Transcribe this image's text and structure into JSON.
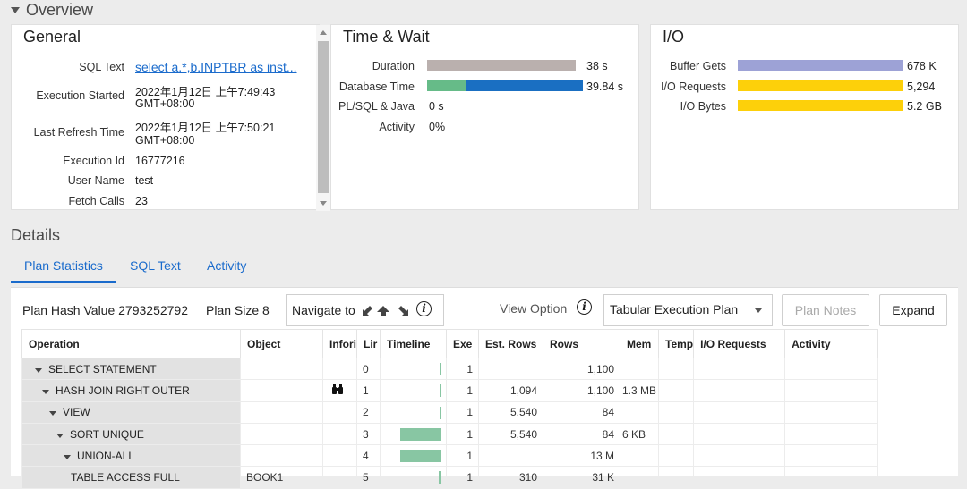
{
  "overview": {
    "title": "Overview"
  },
  "general": {
    "title": "General",
    "rows": [
      {
        "label": "SQL Text",
        "value": "select a.*,b.INPTBR as inst..."
      },
      {
        "label": "Execution Started",
        "value": "2022年1月12日 上午7:49:43",
        "value2": "GMT+08:00"
      },
      {
        "label": "Last Refresh Time",
        "value": "2022年1月12日 上午7:50:21",
        "value2": "GMT+08:00"
      },
      {
        "label": "Execution Id",
        "value": "16777216"
      },
      {
        "label": "User Name",
        "value": "test"
      },
      {
        "label": "Fetch Calls",
        "value": "23"
      }
    ]
  },
  "time_wait": {
    "title": "Time & Wait",
    "rows": [
      {
        "label": "Duration",
        "value": "38 s"
      },
      {
        "label": "Database Time",
        "value": "39.84 s"
      },
      {
        "label": "PL/SQL & Java",
        "value": "0 s"
      },
      {
        "label": "Activity",
        "value": "0%"
      }
    ],
    "colors": {
      "duration": "#bab0ae",
      "db_green": "#66bb88",
      "db_blue": "#1a6fc2"
    }
  },
  "io": {
    "title": "I/O",
    "rows": [
      {
        "label": "Buffer Gets",
        "value": "678 K"
      },
      {
        "label": "I/O Requests",
        "value": "5,294"
      },
      {
        "label": "I/O Bytes",
        "value": "5.2 GB"
      }
    ],
    "colors": {
      "buffer": "#9da2d6",
      "io": "#fdd00a"
    }
  },
  "details": {
    "title": "Details",
    "tabs": [
      "Plan Statistics",
      "SQL Text",
      "Activity"
    ],
    "active_tab": "Plan Statistics"
  },
  "toolbar": {
    "plan_hash": "Plan Hash Value 2793252792",
    "plan_size": "Plan Size 8",
    "navigate": "Navigate to",
    "view_option": "View Option",
    "view_select": "Tabular Execution Plan",
    "plan_notes": "Plan Notes",
    "expand": "Expand"
  },
  "plan_table": {
    "columns": [
      "Operation",
      "Object",
      "Infori",
      "Lir",
      "Timeline",
      "Exe",
      "Est. Rows",
      "Rows",
      "Mem",
      "Temp",
      "I/O Requests",
      "Activity"
    ],
    "rows": [
      {
        "op": "SELECT STATEMENT",
        "indent": 0,
        "object": "",
        "info": false,
        "line": "0",
        "tl_pct": 0,
        "exe": "1",
        "est": "",
        "rows": "1,100",
        "mem": ""
      },
      {
        "op": "HASH JOIN RIGHT OUTER",
        "indent": 1,
        "object": "",
        "info": true,
        "line": "1",
        "tl_pct": 0,
        "exe": "1",
        "est": "1,094",
        "rows": "1,100",
        "mem": "1.3 MB"
      },
      {
        "op": "VIEW",
        "indent": 2,
        "object": "",
        "info": false,
        "line": "2",
        "tl_pct": 0,
        "exe": "1",
        "est": "5,540",
        "rows": "84",
        "mem": ""
      },
      {
        "op": "SORT UNIQUE",
        "indent": 3,
        "object": "",
        "info": false,
        "line": "3",
        "tl_pct": 75,
        "exe": "1",
        "est": "5,540",
        "rows": "84",
        "mem": "6 KB"
      },
      {
        "op": "UNION-ALL",
        "indent": 4,
        "object": "",
        "info": false,
        "line": "4",
        "tl_pct": 75,
        "exe": "1",
        "est": "",
        "rows": "13 M",
        "mem": ""
      },
      {
        "op": "TABLE ACCESS FULL",
        "indent": 5,
        "object": "BOOK1",
        "info": false,
        "line": "5",
        "tl_pct": 5,
        "exe": "1",
        "est": "310",
        "rows": "31 K",
        "mem": ""
      }
    ]
  }
}
